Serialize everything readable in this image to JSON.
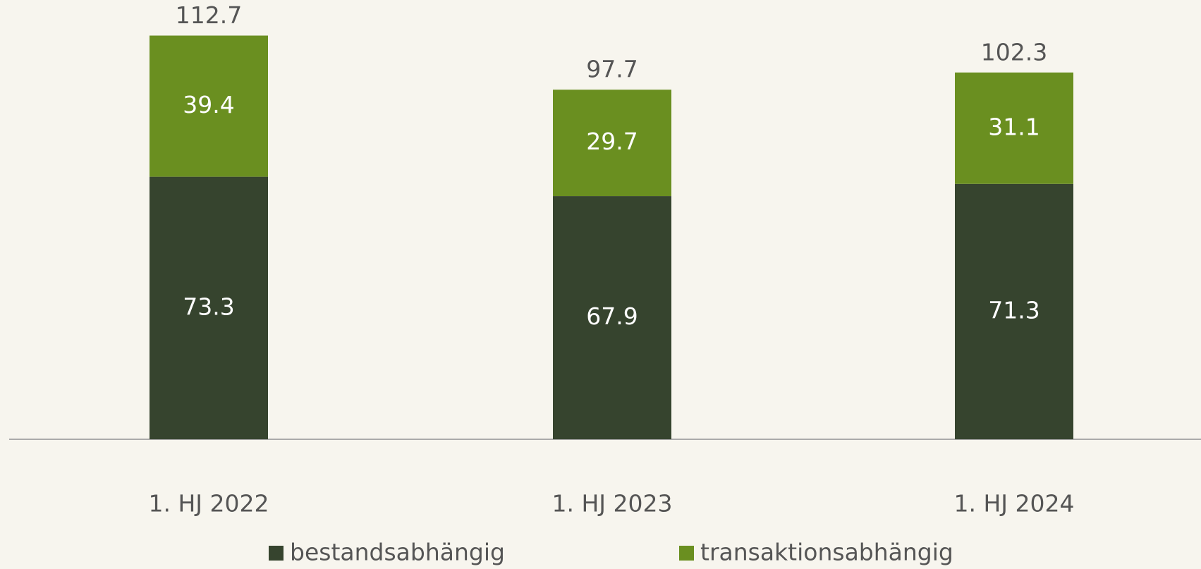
{
  "chart_data": {
    "type": "stacked_bar",
    "categories": [
      "1. HJ 2022",
      "1. HJ 2023",
      "1. HJ 2024"
    ],
    "series": [
      {
        "name": "bestandsabhängig",
        "color": "#36442e",
        "values": [
          73.3,
          67.9,
          71.3
        ]
      },
      {
        "name": "transaktionsabhängig",
        "color": "#6a8f20",
        "values": [
          39.4,
          29.7,
          31.1
        ]
      }
    ],
    "totals": [
      112.7,
      97.7,
      102.3
    ]
  }
}
